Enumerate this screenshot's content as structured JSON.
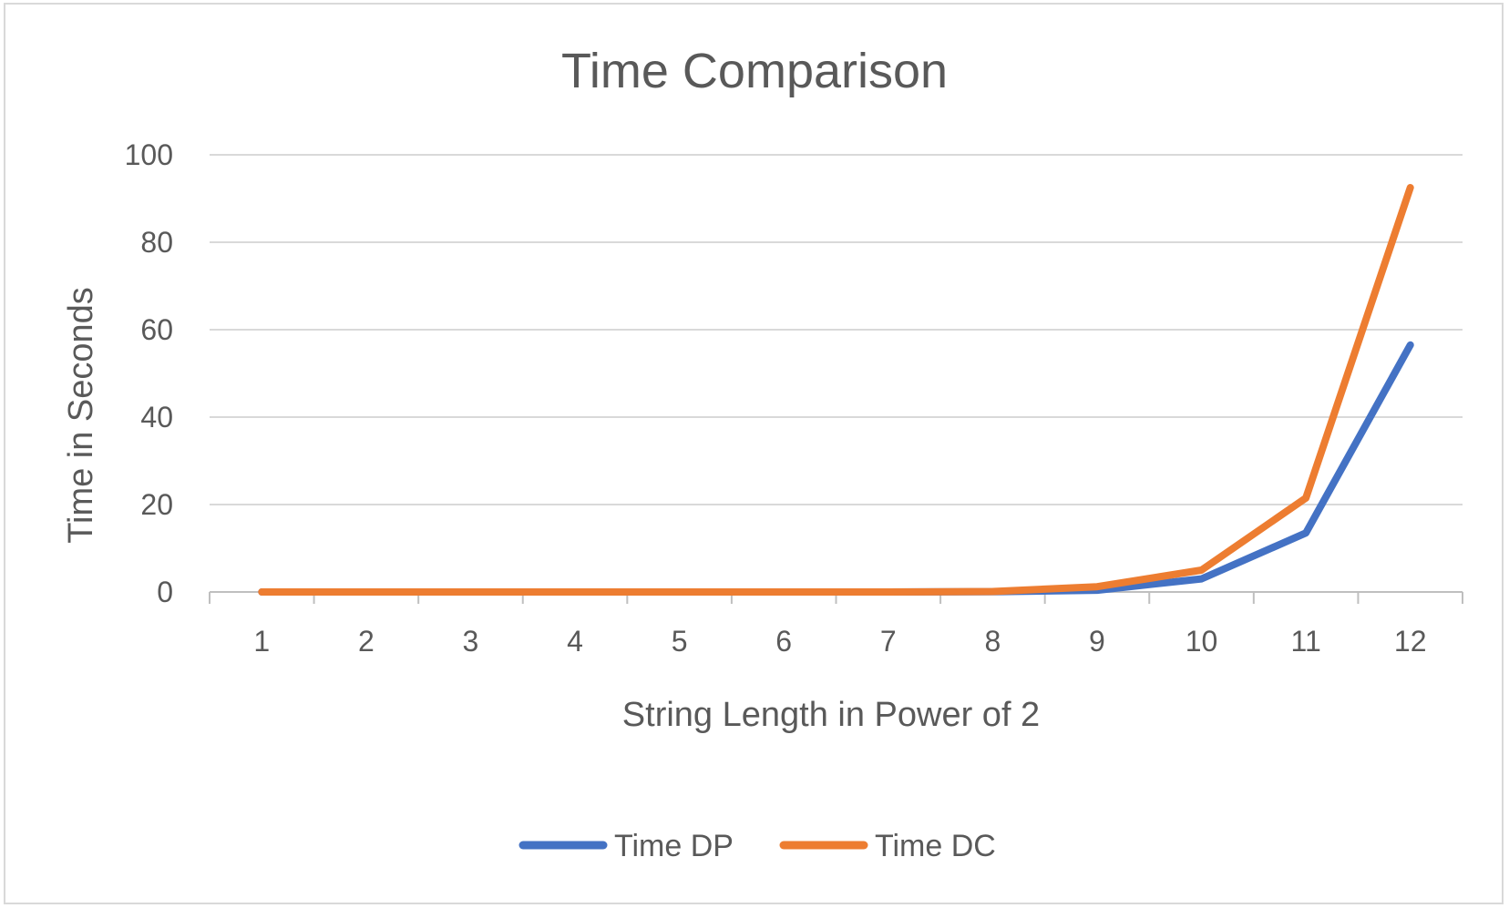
{
  "chart_data": {
    "type": "line",
    "title": "Time Comparison",
    "xlabel": "String Length in Power of 2",
    "ylabel": "Time in Seconds",
    "categories": [
      "1",
      "2",
      "3",
      "4",
      "5",
      "6",
      "7",
      "8",
      "9",
      "10",
      "11",
      "12"
    ],
    "ylim": [
      0,
      100
    ],
    "yticks": [
      "0",
      "20",
      "40",
      "60",
      "80",
      "100"
    ],
    "grid": true,
    "legend_position": "bottom",
    "series": [
      {
        "name": "Time DP",
        "color": "#4472c4",
        "values": [
          0,
          0,
          0,
          0,
          0,
          0,
          0,
          0.05,
          0.4,
          3,
          13.5,
          56.5
        ]
      },
      {
        "name": "Time DC",
        "color": "#ed7d31",
        "values": [
          0,
          0,
          0,
          0,
          0,
          0,
          0,
          0.1,
          1.2,
          5,
          21.5,
          92.5
        ]
      }
    ]
  }
}
